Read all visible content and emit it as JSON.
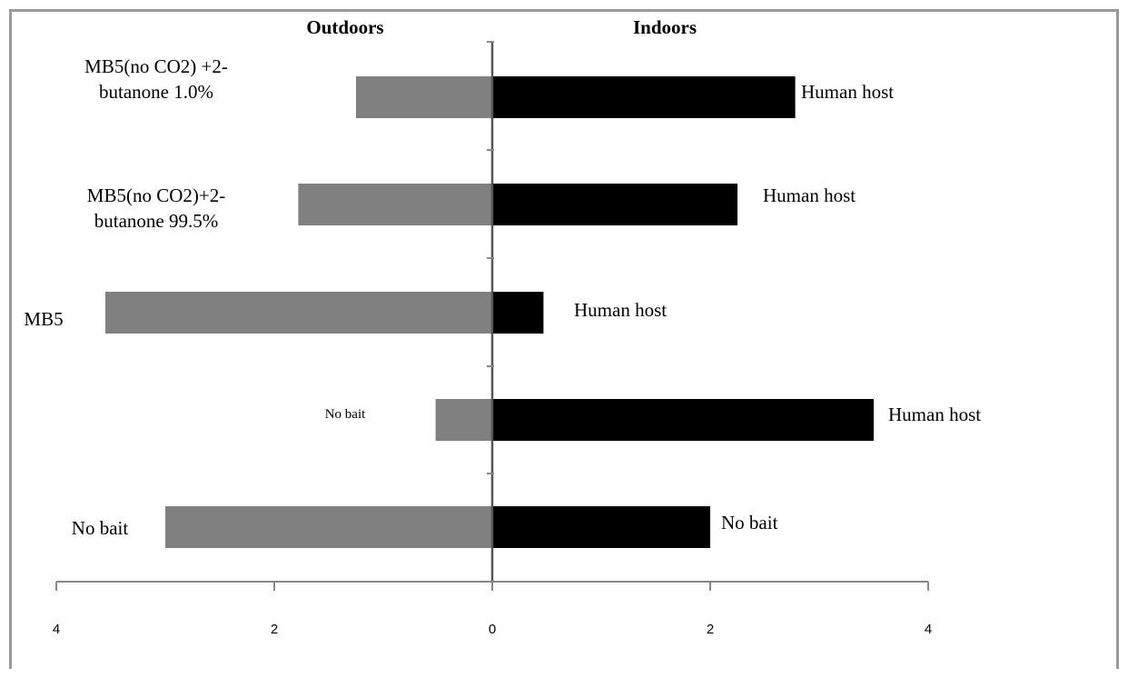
{
  "chart_data": {
    "type": "bar",
    "orientation": "horizontal",
    "layout": "back-to-back",
    "headers": {
      "left": "Outdoors",
      "right": "Indoors"
    },
    "categories": [
      "MB5(no CO2) +2-butanone 1.0%",
      "MB5(no CO2)+2-butanone 99.5%",
      "MB5",
      "No bait",
      "No bait"
    ],
    "category_lines": [
      [
        "MB5(no CO2) +2-",
        "butanone 1.0%"
      ],
      [
        "MB5(no CO2)+2-",
        "butanone 99.5%"
      ],
      [
        "MB5"
      ],
      [
        "No bait"
      ],
      [
        "No bait"
      ]
    ],
    "series": [
      {
        "side": "left",
        "color": "#808080",
        "values": [
          1.25,
          1.78,
          3.55,
          0.52,
          3.0
        ]
      },
      {
        "side": "right",
        "color": "#000000",
        "values": [
          2.78,
          2.25,
          0.47,
          3.5,
          2.0
        ]
      }
    ],
    "right_annotations": [
      "Human host",
      "Human host",
      "Human host",
      "Human host",
      "No bait"
    ],
    "xlim": [
      -4,
      4
    ],
    "xticks": [
      -4,
      -2,
      0,
      2,
      4
    ],
    "xtick_labels": [
      "4",
      "2",
      "0",
      "2",
      "4"
    ],
    "grid": false,
    "title": "",
    "xlabel": "",
    "ylabel": ""
  }
}
